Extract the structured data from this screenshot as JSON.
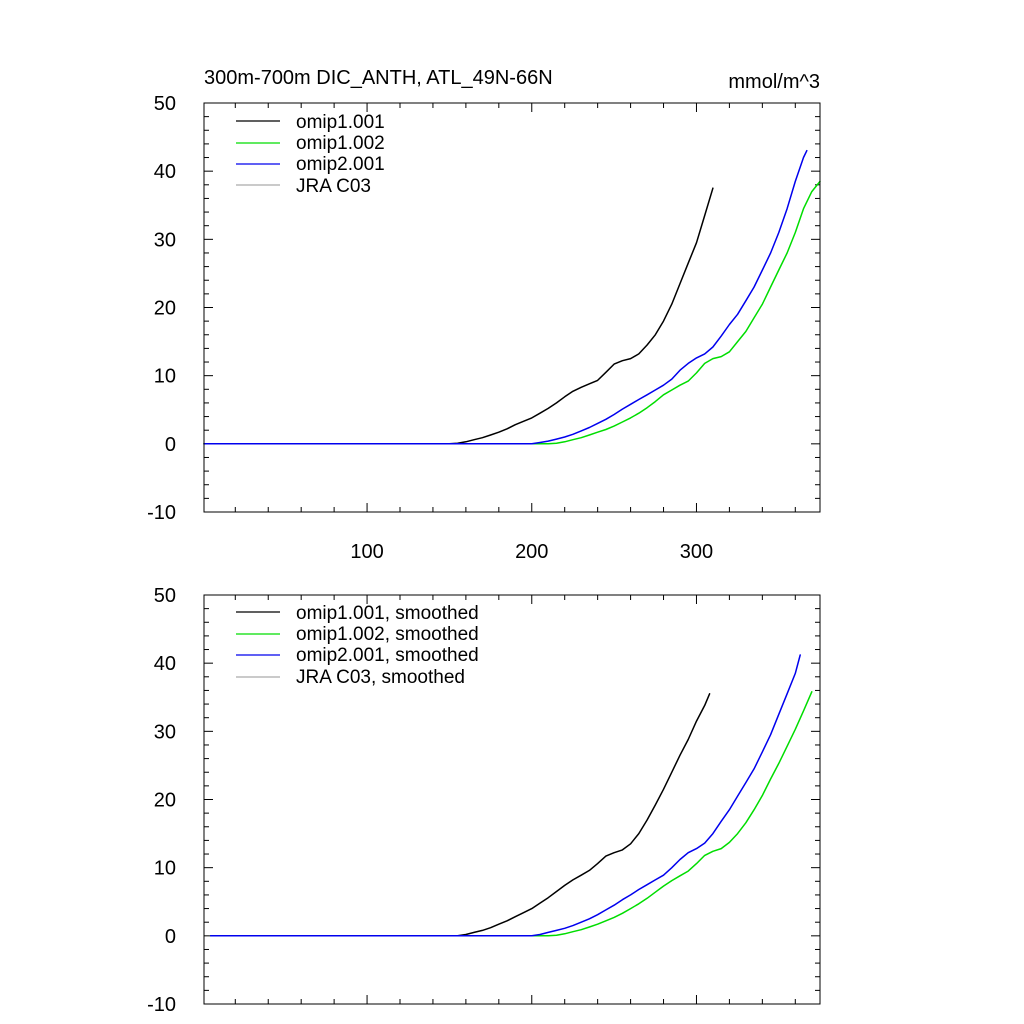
{
  "chart_data": [
    {
      "type": "line",
      "title": "300m-700m DIC_ANTH, ATL_49N-66N",
      "units": "mmol/m^3",
      "xlim": [
        1,
        375
      ],
      "ylim": [
        -10,
        50
      ],
      "x_ticks": [
        100,
        200,
        300
      ],
      "x_tick_labels": [
        "100",
        "200",
        "300"
      ],
      "y_ticks": [
        -10,
        0,
        10,
        20,
        30,
        40,
        50
      ],
      "y_tick_labels": [
        "-10",
        "0",
        "10",
        "20",
        "30",
        "40",
        "50"
      ],
      "legend_position": "top-left",
      "grid": false,
      "series": [
        {
          "name": "omip1.001",
          "color": "#000000",
          "points": [
            [
              1,
              0
            ],
            [
              150,
              0
            ],
            [
              155,
              0.1
            ],
            [
              160,
              0.3
            ],
            [
              165,
              0.6
            ],
            [
              170,
              0.9
            ],
            [
              175,
              1.3
            ],
            [
              180,
              1.7
            ],
            [
              185,
              2.2
            ],
            [
              190,
              2.8
            ],
            [
              195,
              3.3
            ],
            [
              200,
              3.8
            ],
            [
              205,
              4.5
            ],
            [
              210,
              5.2
            ],
            [
              215,
              6.0
            ],
            [
              220,
              6.9
            ],
            [
              225,
              7.7
            ],
            [
              230,
              8.3
            ],
            [
              235,
              8.8
            ],
            [
              240,
              9.3
            ],
            [
              245,
              10.5
            ],
            [
              250,
              11.7
            ],
            [
              255,
              12.2
            ],
            [
              260,
              12.5
            ],
            [
              265,
              13.2
            ],
            [
              270,
              14.5
            ],
            [
              275,
              16.0
            ],
            [
              280,
              18.0
            ],
            [
              285,
              20.5
            ],
            [
              290,
              23.5
            ],
            [
              295,
              26.5
            ],
            [
              300,
              29.5
            ],
            [
              305,
              33.5
            ],
            [
              310,
              37.5
            ]
          ]
        },
        {
          "name": "omip1.002",
          "color": "#00dd00",
          "points": [
            [
              1,
              0
            ],
            [
              210,
              0
            ],
            [
              215,
              0.1
            ],
            [
              220,
              0.3
            ],
            [
              225,
              0.6
            ],
            [
              230,
              0.9
            ],
            [
              235,
              1.3
            ],
            [
              240,
              1.7
            ],
            [
              245,
              2.1
            ],
            [
              250,
              2.6
            ],
            [
              255,
              3.2
            ],
            [
              260,
              3.8
            ],
            [
              265,
              4.5
            ],
            [
              270,
              5.3
            ],
            [
              275,
              6.2
            ],
            [
              280,
              7.2
            ],
            [
              285,
              7.9
            ],
            [
              290,
              8.6
            ],
            [
              295,
              9.2
            ],
            [
              300,
              10.4
            ],
            [
              305,
              11.8
            ],
            [
              310,
              12.5
            ],
            [
              315,
              12.8
            ],
            [
              320,
              13.5
            ],
            [
              325,
              15.0
            ],
            [
              330,
              16.5
            ],
            [
              335,
              18.5
            ],
            [
              340,
              20.5
            ],
            [
              345,
              23.0
            ],
            [
              350,
              25.5
            ],
            [
              355,
              28.0
            ],
            [
              360,
              31.0
            ],
            [
              365,
              34.5
            ],
            [
              370,
              37.0
            ],
            [
              375,
              38.5
            ]
          ]
        },
        {
          "name": "omip2.001",
          "color": "#0000ee",
          "points": [
            [
              1,
              0
            ],
            [
              200,
              0
            ],
            [
              205,
              0.2
            ],
            [
              210,
              0.4
            ],
            [
              215,
              0.7
            ],
            [
              220,
              1.0
            ],
            [
              225,
              1.4
            ],
            [
              230,
              1.9
            ],
            [
              235,
              2.4
            ],
            [
              240,
              3.0
            ],
            [
              245,
              3.6
            ],
            [
              250,
              4.3
            ],
            [
              255,
              5.1
            ],
            [
              260,
              5.8
            ],
            [
              265,
              6.5
            ],
            [
              270,
              7.2
            ],
            [
              275,
              7.9
            ],
            [
              280,
              8.6
            ],
            [
              285,
              9.5
            ],
            [
              290,
              10.8
            ],
            [
              295,
              11.8
            ],
            [
              300,
              12.6
            ],
            [
              305,
              13.2
            ],
            [
              310,
              14.2
            ],
            [
              315,
              15.8
            ],
            [
              320,
              17.5
            ],
            [
              325,
              19.0
            ],
            [
              330,
              21.0
            ],
            [
              335,
              23.0
            ],
            [
              340,
              25.5
            ],
            [
              345,
              28.0
            ],
            [
              350,
              31.0
            ],
            [
              355,
              34.5
            ],
            [
              360,
              38.5
            ],
            [
              365,
              42.0
            ],
            [
              367,
              43.0
            ]
          ]
        },
        {
          "name": "JRA C03",
          "color": "#aaaaaa",
          "points": []
        }
      ]
    },
    {
      "type": "line",
      "title": "",
      "units": "",
      "xlim": [
        1,
        375
      ],
      "ylim": [
        -10,
        50
      ],
      "x_ticks": [
        100,
        200,
        300
      ],
      "x_tick_labels": [],
      "y_ticks": [
        -10,
        0,
        10,
        20,
        30,
        40,
        50
      ],
      "y_tick_labels": [
        "-10",
        "0",
        "10",
        "20",
        "30",
        "40",
        "50"
      ],
      "legend_position": "top-left",
      "grid": false,
      "series": [
        {
          "name": "omip1.001, smoothed",
          "color": "#000000",
          "points": [
            [
              5,
              0
            ],
            [
              155,
              0
            ],
            [
              160,
              0.2
            ],
            [
              165,
              0.5
            ],
            [
              170,
              0.8
            ],
            [
              175,
              1.2
            ],
            [
              180,
              1.7
            ],
            [
              185,
              2.2
            ],
            [
              190,
              2.8
            ],
            [
              195,
              3.4
            ],
            [
              200,
              4.0
            ],
            [
              205,
              4.8
            ],
            [
              210,
              5.6
            ],
            [
              215,
              6.5
            ],
            [
              220,
              7.4
            ],
            [
              225,
              8.2
            ],
            [
              230,
              8.9
            ],
            [
              235,
              9.6
            ],
            [
              240,
              10.6
            ],
            [
              245,
              11.7
            ],
            [
              250,
              12.2
            ],
            [
              255,
              12.6
            ],
            [
              260,
              13.5
            ],
            [
              265,
              15.0
            ],
            [
              270,
              17.0
            ],
            [
              275,
              19.2
            ],
            [
              280,
              21.5
            ],
            [
              285,
              24.0
            ],
            [
              290,
              26.5
            ],
            [
              295,
              28.8
            ],
            [
              300,
              31.5
            ],
            [
              305,
              33.8
            ],
            [
              308,
              35.5
            ]
          ]
        },
        {
          "name": "omip1.002, smoothed",
          "color": "#00dd00",
          "points": [
            [
              5,
              0
            ],
            [
              210,
              0
            ],
            [
              215,
              0.1
            ],
            [
              220,
              0.3
            ],
            [
              225,
              0.6
            ],
            [
              230,
              0.9
            ],
            [
              235,
              1.3
            ],
            [
              240,
              1.7
            ],
            [
              245,
              2.2
            ],
            [
              250,
              2.7
            ],
            [
              255,
              3.3
            ],
            [
              260,
              4.0
            ],
            [
              265,
              4.7
            ],
            [
              270,
              5.5
            ],
            [
              275,
              6.4
            ],
            [
              280,
              7.3
            ],
            [
              285,
              8.1
            ],
            [
              290,
              8.8
            ],
            [
              295,
              9.5
            ],
            [
              300,
              10.6
            ],
            [
              305,
              11.8
            ],
            [
              310,
              12.4
            ],
            [
              315,
              12.8
            ],
            [
              320,
              13.7
            ],
            [
              325,
              15.0
            ],
            [
              330,
              16.6
            ],
            [
              335,
              18.5
            ],
            [
              340,
              20.6
            ],
            [
              345,
              23.0
            ],
            [
              350,
              25.3
            ],
            [
              355,
              27.8
            ],
            [
              360,
              30.3
            ],
            [
              365,
              33.0
            ],
            [
              370,
              35.8
            ]
          ]
        },
        {
          "name": "omip2.001, smoothed",
          "color": "#0000ee",
          "points": [
            [
              5,
              0
            ],
            [
              200,
              0
            ],
            [
              205,
              0.2
            ],
            [
              210,
              0.5
            ],
            [
              215,
              0.8
            ],
            [
              220,
              1.1
            ],
            [
              225,
              1.5
            ],
            [
              230,
              2.0
            ],
            [
              235,
              2.5
            ],
            [
              240,
              3.1
            ],
            [
              245,
              3.8
            ],
            [
              250,
              4.5
            ],
            [
              255,
              5.3
            ],
            [
              260,
              6.0
            ],
            [
              265,
              6.8
            ],
            [
              270,
              7.5
            ],
            [
              275,
              8.2
            ],
            [
              280,
              8.9
            ],
            [
              285,
              10.0
            ],
            [
              290,
              11.2
            ],
            [
              295,
              12.2
            ],
            [
              300,
              12.8
            ],
            [
              305,
              13.6
            ],
            [
              310,
              15.0
            ],
            [
              315,
              16.8
            ],
            [
              320,
              18.5
            ],
            [
              325,
              20.5
            ],
            [
              330,
              22.5
            ],
            [
              335,
              24.5
            ],
            [
              340,
              27.0
            ],
            [
              345,
              29.5
            ],
            [
              350,
              32.5
            ],
            [
              355,
              35.5
            ],
            [
              360,
              38.5
            ],
            [
              363,
              41.2
            ]
          ]
        },
        {
          "name": "JRA C03, smoothed",
          "color": "#aaaaaa",
          "points": []
        }
      ]
    }
  ]
}
